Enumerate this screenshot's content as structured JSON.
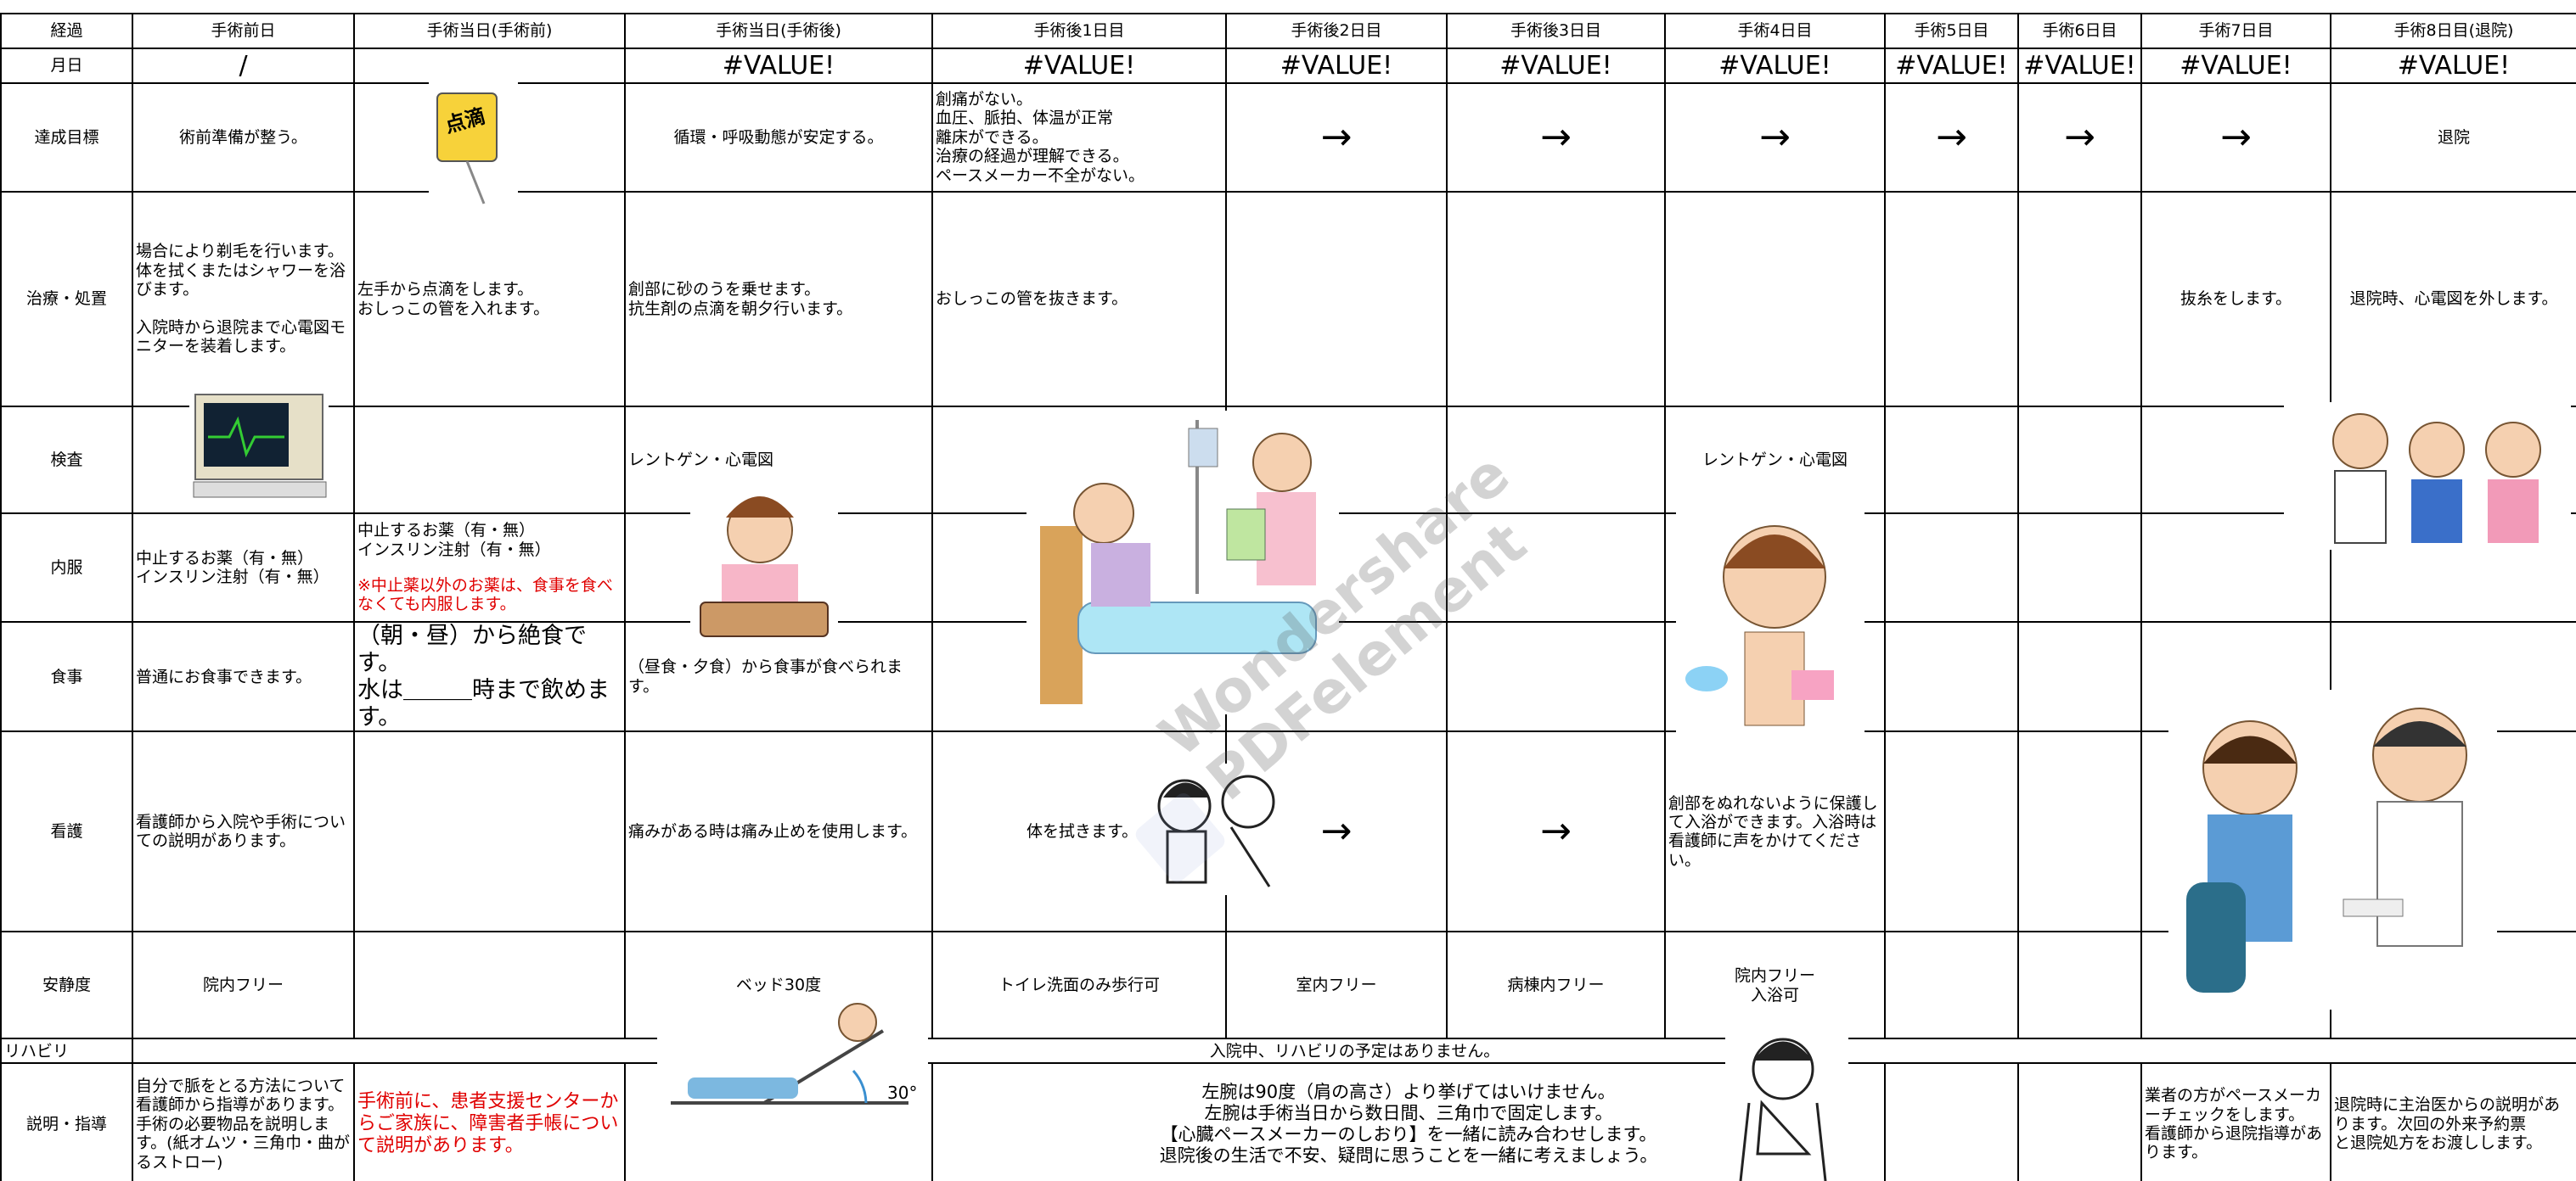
{
  "header": [
    "経過",
    "手術前日",
    "手術当日(手術前)",
    "手術当日(手術後)",
    "手術後1日目",
    "手術後2日目",
    "手術後3日目",
    "手術4日目",
    "手術5日目",
    "手術6日目",
    "手術7日目",
    "手術8日目(退院)"
  ],
  "rows": [
    {
      "label": "月日",
      "cells": [
        "/",
        "#VALUE!",
        "#VALUE!",
        "#VALUE!",
        "#VALUE!",
        "#VALUE!",
        "#VALUE!",
        "#VALUE!",
        "#VALUE!",
        "#VALUE!"
      ]
    },
    {
      "label": "達成目標",
      "cells": [
        "術前準備が整う。",
        "循環・呼吸動態が安定する。",
        "創痛がない。\n血圧、脈拍、体温が正常\n離床ができる。\n治療の経過が理解できる。\nペースメーカー不全がない。",
        "→",
        "→",
        "→",
        "→",
        "→",
        "→",
        "退院"
      ]
    },
    {
      "label": "治療・処置",
      "cells": [
        "場合により剃毛を行います。\n体を拭くまたはシャワーを浴びます。\n\n入院時から退院まで心電図モニターを装着します。",
        "左手から点滴をします。\nおしっこの管を入れます。",
        "創部に砂のうを乗せます。\n抗生剤の点滴を朝夕行います。",
        "おしっこの管を抜きます。",
        "抜糸をします。",
        "退院時、心電図を外します。"
      ]
    },
    {
      "label": "検査",
      "cells": [
        "レントゲン・心電図",
        "レントゲン・心電図"
      ]
    },
    {
      "label": "内服",
      "cells": [
        "中止するお薬（有・無）\nインスリン注射（有・無）",
        "中止するお薬（有・無）\nインスリン注射（有・無）",
        "※中止薬以外のお薬は、食事を食べなくても内服します。"
      ]
    },
    {
      "label": "食事",
      "cells": [
        "普通にお食事できます。",
        "（朝・昼）から絶食です。\n水は＿＿＿時まで飲めます。",
        "（昼食・夕食）から食事が食べられます。"
      ]
    },
    {
      "label": "看護",
      "cells": [
        "看護師から入院や手術についての説明があります。",
        "痛みがある時は痛み止めを使用します。",
        "体を拭きます。",
        "→",
        "→",
        "創部をぬれないように保護して入浴ができます。入浴時は看護師に声をかけてください。"
      ]
    },
    {
      "label": "安静度",
      "cells": [
        "院内フリー",
        "ベッド30度",
        "トイレ洗面のみ歩行可",
        "室内フリー",
        "病棟内フリー",
        "院内フリー\n入浴可"
      ]
    },
    {
      "label": "リハビリ",
      "cells": [
        "入院中、リハビリの予定はありません。"
      ]
    },
    {
      "label": "説明・指導",
      "cells": [
        "自分で脈をとる方法について看護師から指導があります。\n手術の必要物品を説明します。(紙オムツ・三角巾・曲がるストロー)",
        "手術前に、患者支援センターからご家族に、障害者手帳について説明があります。",
        "左腕は90度（肩の高さ）より挙げてはいけません。\n左腕は手術当日から数日間、三角巾で固定します。\n【心臓ペースメーカーのしおり】を一緒に読み合わせします。\n退院後の生活で不安、疑問に思うことを一緒に考えましょう。",
        "業者の方がペースメーカーチェックをします。\n看護師から退院指導があります。",
        "退院時に主治医からの説明があります。次回の外来予約票\nと退院処方をお渡しします。"
      ]
    }
  ],
  "drip_label": "点滴",
  "angle_label": "30°",
  "watermark": [
    "Wondershare",
    "PDFelement"
  ]
}
